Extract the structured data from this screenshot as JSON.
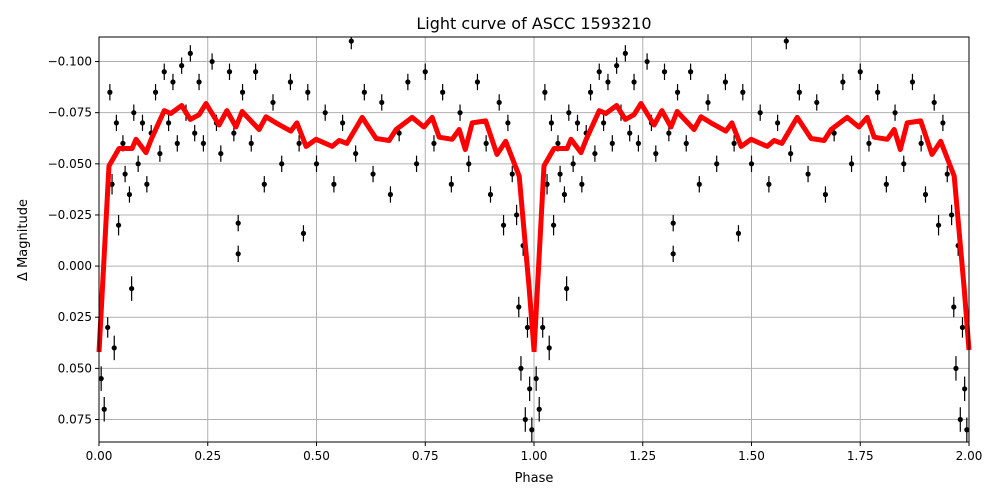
{
  "chart_data": {
    "type": "scatter",
    "title": "Light curve of ASCC 1593210",
    "xlabel": "Phase",
    "ylabel": "Δ Magnitude",
    "xlim": [
      0,
      2
    ],
    "ylim": [
      0.086,
      -0.112
    ],
    "y_inverted": true,
    "grid": true,
    "x_ticks": [
      "0.00",
      "0.25",
      "0.50",
      "0.75",
      "1.00",
      "1.25",
      "1.50",
      "1.75",
      "2.00"
    ],
    "x_tick_values": [
      0,
      0.25,
      0.5,
      0.75,
      1.0,
      1.25,
      1.5,
      1.75,
      2.0
    ],
    "y_ticks": [
      "−0.100",
      "−0.075",
      "−0.050",
      "−0.025",
      "0.000",
      "0.025",
      "0.050",
      "0.075"
    ],
    "y_tick_values": [
      -0.1,
      -0.075,
      -0.05,
      -0.025,
      0,
      0.025,
      0.05,
      0.075
    ],
    "period_repeat": true,
    "colors": {
      "points": "#000000",
      "model": "#ff0000",
      "grid": "#b0b0b0"
    },
    "points": [
      [
        0.005,
        0.055,
        0.006
      ],
      [
        0.012,
        0.07,
        0.006
      ],
      [
        0.02,
        0.03,
        0.005
      ],
      [
        0.025,
        -0.085,
        0.004
      ],
      [
        0.03,
        -0.04,
        0.005
      ],
      [
        0.035,
        0.04,
        0.006
      ],
      [
        0.04,
        -0.07,
        0.004
      ],
      [
        0.045,
        -0.02,
        0.005
      ],
      [
        0.055,
        -0.06,
        0.004
      ],
      [
        0.06,
        -0.045,
        0.004
      ],
      [
        0.07,
        -0.035,
        0.004
      ],
      [
        0.075,
        0.011,
        0.006
      ],
      [
        0.08,
        -0.075,
        0.004
      ],
      [
        0.09,
        -0.05,
        0.004
      ],
      [
        0.1,
        -0.07,
        0.004
      ],
      [
        0.11,
        -0.04,
        0.004
      ],
      [
        0.12,
        -0.065,
        0.004
      ],
      [
        0.13,
        -0.085,
        0.004
      ],
      [
        0.14,
        -0.055,
        0.004
      ],
      [
        0.15,
        -0.095,
        0.004
      ],
      [
        0.16,
        -0.07,
        0.004
      ],
      [
        0.17,
        -0.09,
        0.004
      ],
      [
        0.18,
        -0.06,
        0.004
      ],
      [
        0.19,
        -0.098,
        0.004
      ],
      [
        0.2,
        -0.075,
        0.004
      ],
      [
        0.21,
        -0.104,
        0.004
      ],
      [
        0.22,
        -0.065,
        0.004
      ],
      [
        0.23,
        -0.09,
        0.004
      ],
      [
        0.24,
        -0.06,
        0.004
      ],
      [
        0.26,
        -0.1,
        0.004
      ],
      [
        0.27,
        -0.07,
        0.004
      ],
      [
        0.28,
        -0.055,
        0.004
      ],
      [
        0.3,
        -0.095,
        0.004
      ],
      [
        0.31,
        -0.065,
        0.004
      ],
      [
        0.32,
        -0.021,
        0.004
      ],
      [
        0.32,
        -0.006,
        0.004
      ],
      [
        0.33,
        -0.085,
        0.004
      ],
      [
        0.35,
        -0.06,
        0.004
      ],
      [
        0.36,
        -0.095,
        0.004
      ],
      [
        0.38,
        -0.04,
        0.004
      ],
      [
        0.4,
        -0.08,
        0.004
      ],
      [
        0.42,
        -0.05,
        0.004
      ],
      [
        0.44,
        -0.09,
        0.004
      ],
      [
        0.46,
        -0.06,
        0.004
      ],
      [
        0.47,
        -0.016,
        0.004
      ],
      [
        0.48,
        -0.085,
        0.004
      ],
      [
        0.5,
        -0.05,
        0.004
      ],
      [
        0.52,
        -0.075,
        0.004
      ],
      [
        0.54,
        -0.04,
        0.004
      ],
      [
        0.56,
        -0.07,
        0.004
      ],
      [
        0.58,
        -0.11,
        0.004
      ],
      [
        0.59,
        -0.055,
        0.004
      ],
      [
        0.61,
        -0.085,
        0.004
      ],
      [
        0.63,
        -0.045,
        0.004
      ],
      [
        0.65,
        -0.08,
        0.004
      ],
      [
        0.67,
        -0.035,
        0.004
      ],
      [
        0.69,
        -0.065,
        0.004
      ],
      [
        0.71,
        -0.09,
        0.004
      ],
      [
        0.73,
        -0.05,
        0.004
      ],
      [
        0.75,
        -0.095,
        0.004
      ],
      [
        0.77,
        -0.06,
        0.004
      ],
      [
        0.79,
        -0.085,
        0.004
      ],
      [
        0.81,
        -0.04,
        0.004
      ],
      [
        0.83,
        -0.075,
        0.004
      ],
      [
        0.85,
        -0.05,
        0.004
      ],
      [
        0.87,
        -0.09,
        0.004
      ],
      [
        0.89,
        -0.06,
        0.004
      ],
      [
        0.9,
        -0.035,
        0.004
      ],
      [
        0.92,
        -0.08,
        0.004
      ],
      [
        0.93,
        -0.02,
        0.005
      ],
      [
        0.94,
        -0.07,
        0.004
      ],
      [
        0.95,
        -0.045,
        0.004
      ],
      [
        0.96,
        -0.025,
        0.005
      ],
      [
        0.965,
        0.02,
        0.005
      ],
      [
        0.97,
        0.05,
        0.006
      ],
      [
        0.975,
        -0.01,
        0.005
      ],
      [
        0.98,
        0.075,
        0.006
      ],
      [
        0.985,
        0.03,
        0.005
      ],
      [
        0.99,
        0.06,
        0.006
      ],
      [
        0.995,
        0.08,
        0.006
      ]
    ],
    "model": [
      [
        0,
        0.042
      ],
      [
        0.023,
        -0.049
      ],
      [
        0.046,
        -0.0575
      ],
      [
        0.076,
        -0.0575
      ],
      [
        0.085,
        -0.062
      ],
      [
        0.108,
        -0.0555
      ],
      [
        0.12,
        -0.062
      ],
      [
        0.15,
        -0.076
      ],
      [
        0.165,
        -0.0746
      ],
      [
        0.19,
        -0.0785
      ],
      [
        0.21,
        -0.0717
      ],
      [
        0.23,
        -0.074
      ],
      [
        0.246,
        -0.0795
      ],
      [
        0.276,
        -0.069
      ],
      [
        0.294,
        -0.076
      ],
      [
        0.315,
        -0.068
      ],
      [
        0.329,
        -0.0756
      ],
      [
        0.368,
        -0.0668
      ],
      [
        0.384,
        -0.073
      ],
      [
        0.407,
        -0.07
      ],
      [
        0.441,
        -0.066
      ],
      [
        0.455,
        -0.07
      ],
      [
        0.476,
        -0.0585
      ],
      [
        0.499,
        -0.062
      ],
      [
        0.536,
        -0.0585
      ],
      [
        0.552,
        -0.0614
      ],
      [
        0.57,
        -0.06
      ],
      [
        0.605,
        -0.0727
      ],
      [
        0.637,
        -0.0624
      ],
      [
        0.667,
        -0.0614
      ],
      [
        0.683,
        -0.0668
      ],
      [
        0.72,
        -0.0727
      ],
      [
        0.747,
        -0.068
      ],
      [
        0.766,
        -0.0727
      ],
      [
        0.782,
        -0.063
      ],
      [
        0.812,
        -0.062
      ],
      [
        0.828,
        -0.0668
      ],
      [
        0.842,
        -0.057
      ],
      [
        0.858,
        -0.07
      ],
      [
        0.889,
        -0.071
      ],
      [
        0.915,
        -0.0546
      ],
      [
        0.935,
        -0.061
      ],
      [
        0.966,
        -0.044
      ],
      [
        0.989,
        0.011
      ],
      [
        1.0,
        0.041
      ]
    ]
  }
}
